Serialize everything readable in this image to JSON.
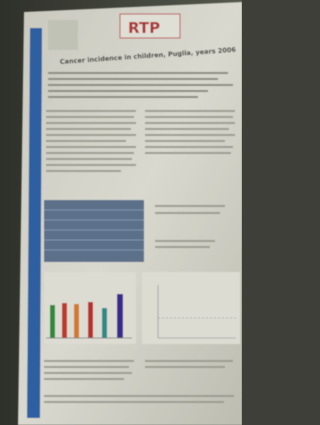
{
  "poster": {
    "logo": "RTP",
    "title": "Cancer incidence in children, Puglia, years 2006"
  }
}
